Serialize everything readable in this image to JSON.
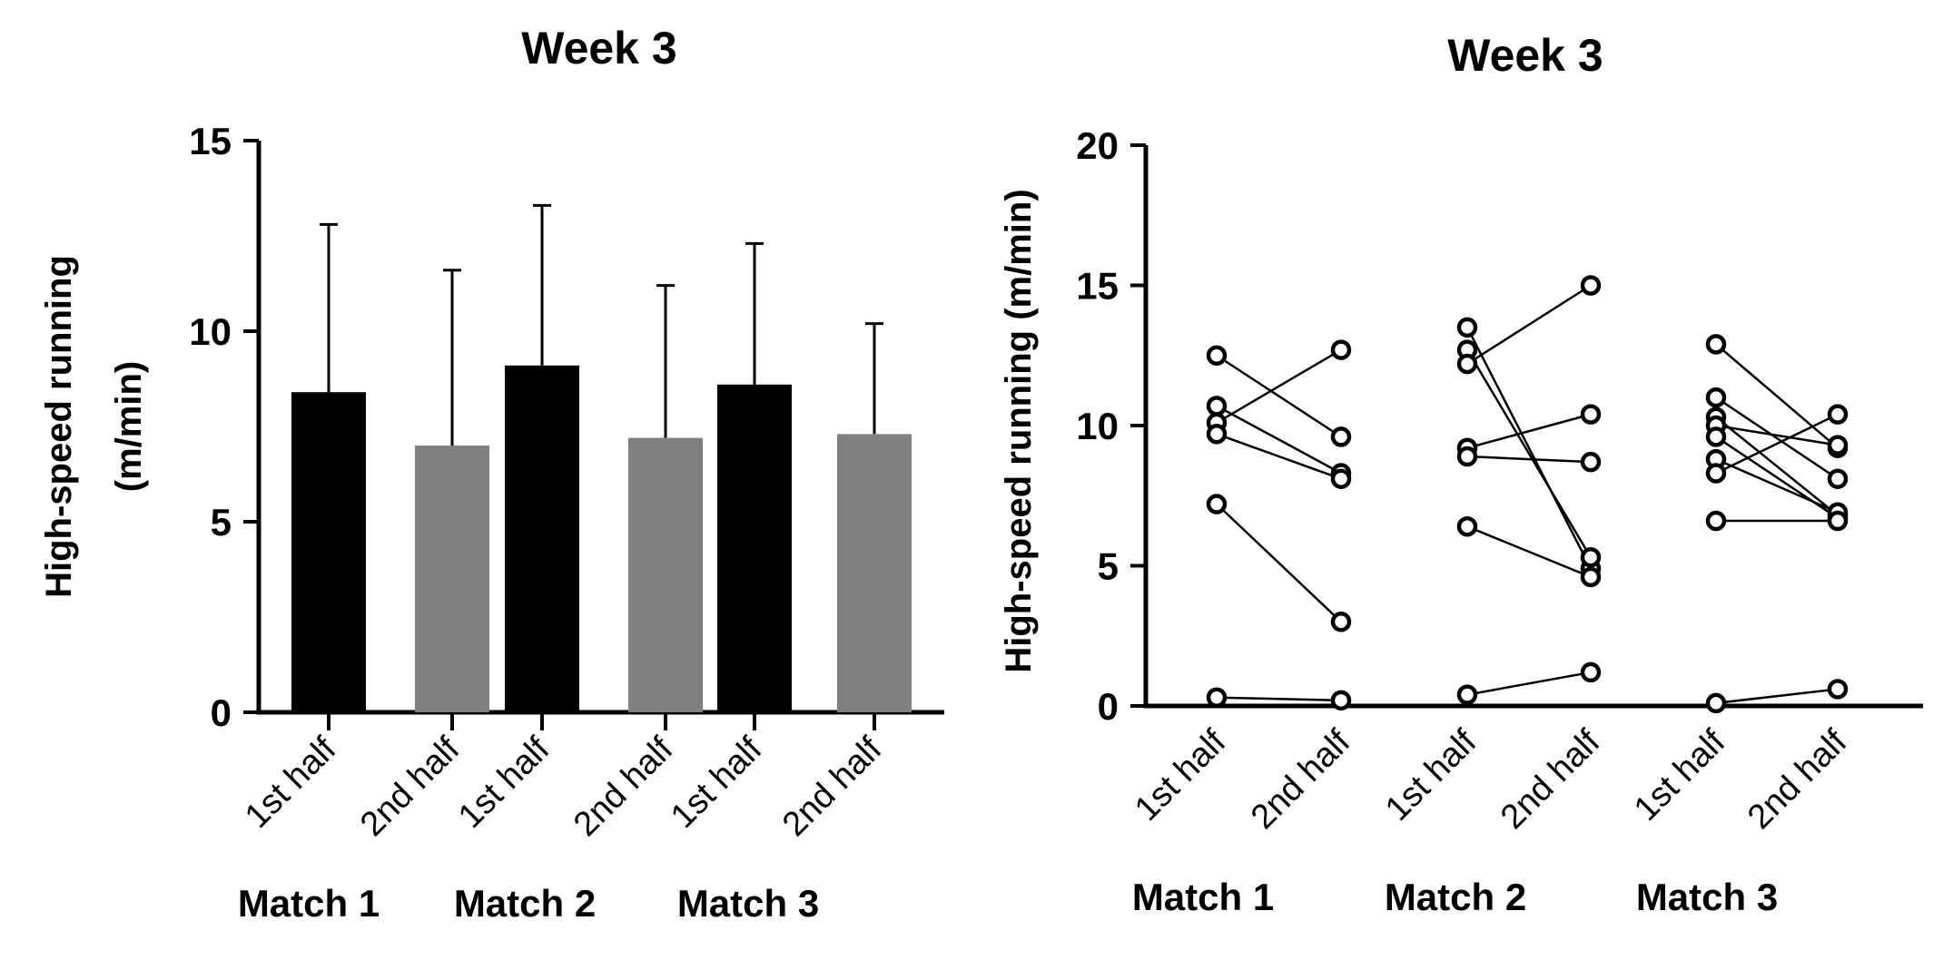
{
  "chart_data": [
    {
      "type": "bar",
      "title": "Week 3",
      "ylabel": "High-speed running",
      "ylabel_unit": "(m/min)",
      "ylim": [
        0,
        15
      ],
      "yticks": [
        "0",
        "5",
        "10",
        "15"
      ],
      "categories": [
        "1st half",
        "2nd half",
        "1st half",
        "2nd half",
        "1st half",
        "2nd half"
      ],
      "groups": [
        "Match 1",
        "Match 2",
        "Match 3"
      ],
      "values": [
        8.4,
        7.0,
        9.1,
        7.2,
        8.6,
        7.3
      ],
      "error_upper": [
        12.8,
        11.6,
        13.3,
        11.2,
        12.3,
        10.2
      ],
      "bar_colors": [
        "#000000",
        "#808080",
        "#000000",
        "#808080",
        "#000000",
        "#808080"
      ],
      "grid": false
    },
    {
      "type": "scatter",
      "subtype": "paired-points",
      "title": "Week 3",
      "ylabel": "High-speed running (m/min)",
      "ylim": [
        0,
        20
      ],
      "yticks": [
        "0",
        "5",
        "10",
        "15",
        "20"
      ],
      "categories": [
        "1st half",
        "2nd half",
        "1st half",
        "2nd half",
        "1st half",
        "2nd half"
      ],
      "groups": [
        "Match 1",
        "Match 2",
        "Match 3"
      ],
      "pairs": [
        [
          [
            12.5,
            9.6
          ],
          [
            10.7,
            8.3
          ],
          [
            10.1,
            12.7
          ],
          [
            9.7,
            8.1
          ],
          [
            7.2,
            3.0
          ],
          [
            0.3,
            0.2
          ]
        ],
        [
          [
            13.5,
            4.9
          ],
          [
            12.7,
            5.3
          ],
          [
            12.2,
            15.0
          ],
          [
            9.2,
            10.4
          ],
          [
            8.9,
            8.7
          ],
          [
            6.4,
            4.6
          ],
          [
            0.4,
            1.2
          ]
        ],
        [
          [
            12.9,
            9.2
          ],
          [
            11.0,
            8.1
          ],
          [
            10.3,
            6.8
          ],
          [
            10.0,
            9.3
          ],
          [
            9.6,
            6.7
          ],
          [
            8.8,
            6.9
          ],
          [
            8.3,
            10.4
          ],
          [
            6.6,
            6.6
          ],
          [
            0.1,
            0.6
          ]
        ]
      ],
      "grid": false
    }
  ]
}
